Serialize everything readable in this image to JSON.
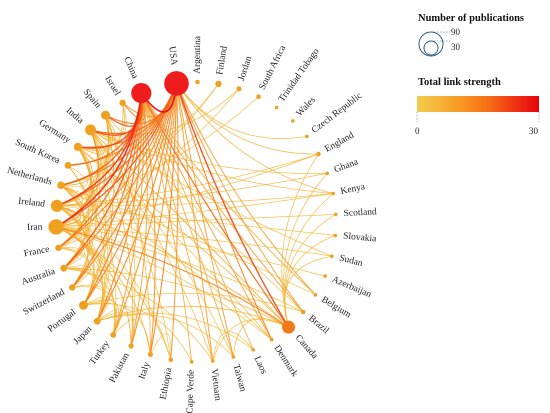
{
  "colors": {
    "gradient": [
      "#f2c94c",
      "#f5b236",
      "#f7901f",
      "#f56a16",
      "#ee3412",
      "#e8000e"
    ],
    "node_low": "#f0a020",
    "node_high": "#ee1c1c",
    "ring": "#2f5f86"
  },
  "legend": {
    "pubs_title": "Number of publications",
    "pubs_big": "90",
    "pubs_small": "30",
    "strength_title": "Total link strength",
    "strength_min": "0",
    "strength_max": "30"
  },
  "nodes": [
    {
      "label": "USA",
      "size": 90,
      "strength": 30
    },
    {
      "label": "Argentina",
      "size": 3,
      "strength": 2
    },
    {
      "label": "Finland",
      "size": 6,
      "strength": 3
    },
    {
      "label": "Jordan",
      "size": 4,
      "strength": 2
    },
    {
      "label": "South Africa",
      "size": 3,
      "strength": 2
    },
    {
      "label": "Trinidad Tobago",
      "size": 2,
      "strength": 1
    },
    {
      "label": "Wales",
      "size": 2,
      "strength": 1
    },
    {
      "label": "Czech Republic",
      "size": 2,
      "strength": 2
    },
    {
      "label": "England",
      "size": 3,
      "strength": 4
    },
    {
      "label": "Ghana",
      "size": 2,
      "strength": 2
    },
    {
      "label": "Kenya",
      "size": 2,
      "strength": 3
    },
    {
      "label": "Scotland",
      "size": 2,
      "strength": 2
    },
    {
      "label": "Slovakia",
      "size": 2,
      "strength": 2
    },
    {
      "label": "Sudan",
      "size": 2,
      "strength": 2
    },
    {
      "label": "Azerbaijan",
      "size": 2,
      "strength": 2
    },
    {
      "label": "Belgium",
      "size": 2,
      "strength": 3
    },
    {
      "label": "Brazil",
      "size": 3,
      "strength": 3
    },
    {
      "label": "Canada",
      "size": 25,
      "strength": 10
    },
    {
      "label": "Denmark",
      "size": 2,
      "strength": 3
    },
    {
      "label": "Laos",
      "size": 2,
      "strength": 2
    },
    {
      "label": "Taiwan",
      "size": 2,
      "strength": 3
    },
    {
      "label": "Vietnam",
      "size": 2,
      "strength": 3
    },
    {
      "label": "Cape Verde",
      "size": 2,
      "strength": 2
    },
    {
      "label": "Ethiopia",
      "size": 3,
      "strength": 3
    },
    {
      "label": "Italy",
      "size": 4,
      "strength": 4
    },
    {
      "label": "Pakistan",
      "size": 4,
      "strength": 4
    },
    {
      "label": "Turkey",
      "size": 5,
      "strength": 5
    },
    {
      "label": "Japan",
      "size": 7,
      "strength": 5
    },
    {
      "label": "Portugal",
      "size": 12,
      "strength": 6
    },
    {
      "label": "Switzerland",
      "size": 6,
      "strength": 6
    },
    {
      "label": "Australia",
      "size": 7,
      "strength": 6
    },
    {
      "label": "France",
      "size": 6,
      "strength": 6
    },
    {
      "label": "Iran",
      "size": 35,
      "strength": 7
    },
    {
      "label": "Ireland",
      "size": 22,
      "strength": 7
    },
    {
      "label": "Netherlands",
      "size": 8,
      "strength": 7
    },
    {
      "label": "South Korea",
      "size": 7,
      "strength": 6
    },
    {
      "label": "Germany",
      "size": 10,
      "strength": 7
    },
    {
      "label": "India",
      "size": 18,
      "strength": 7
    },
    {
      "label": "Spain",
      "size": 12,
      "strength": 7
    },
    {
      "label": "Israel",
      "size": 6,
      "strength": 7
    },
    {
      "label": "China",
      "size": 60,
      "strength": 28
    }
  ],
  "links": [
    [
      "USA",
      "China",
      30
    ],
    [
      "USA",
      "Canada",
      22
    ],
    [
      "USA",
      "Iran",
      20
    ],
    [
      "USA",
      "Ireland",
      18
    ],
    [
      "USA",
      "India",
      18
    ],
    [
      "USA",
      "Spain",
      16
    ],
    [
      "USA",
      "Germany",
      16
    ],
    [
      "USA",
      "Netherlands",
      16
    ],
    [
      "USA",
      "South Korea",
      14
    ],
    [
      "USA",
      "France",
      14
    ],
    [
      "USA",
      "Australia",
      14
    ],
    [
      "USA",
      "Switzerland",
      14
    ],
    [
      "USA",
      "Portugal",
      14
    ],
    [
      "USA",
      "Japan",
      14
    ],
    [
      "USA",
      "Turkey",
      12
    ],
    [
      "USA",
      "Pakistan",
      12
    ],
    [
      "USA",
      "Italy",
      14
    ],
    [
      "USA",
      "Ethiopia",
      12
    ],
    [
      "USA",
      "Denmark",
      14
    ],
    [
      "USA",
      "Taiwan",
      10
    ],
    [
      "USA",
      "Vietnam",
      10
    ],
    [
      "USA",
      "Brazil",
      10
    ],
    [
      "USA",
      "Belgium",
      10
    ],
    [
      "USA",
      "Israel",
      12
    ],
    [
      "USA",
      "England",
      6
    ],
    [
      "USA",
      "Kenya",
      6
    ],
    [
      "USA",
      "Czech Republic",
      5
    ],
    [
      "China",
      "Iran",
      26
    ],
    [
      "China",
      "Ireland",
      24
    ],
    [
      "China",
      "Germany",
      22
    ],
    [
      "China",
      "Spain",
      20
    ],
    [
      "China",
      "India",
      22
    ],
    [
      "China",
      "Netherlands",
      20
    ],
    [
      "China",
      "Australia",
      20
    ],
    [
      "China",
      "South Korea",
      18
    ],
    [
      "China",
      "Canada",
      18
    ],
    [
      "China",
      "France",
      18
    ],
    [
      "China",
      "Portugal",
      16
    ],
    [
      "China",
      "Switzerland",
      16
    ],
    [
      "China",
      "Japan",
      14
    ],
    [
      "China",
      "Italy",
      12
    ],
    [
      "China",
      "Turkey",
      10
    ],
    [
      "China",
      "Pakistan",
      10
    ],
    [
      "China",
      "Laos",
      8
    ],
    [
      "China",
      "Cape Verde",
      8
    ],
    [
      "China",
      "Israel",
      14
    ],
    [
      "China",
      "Taiwan",
      8
    ],
    [
      "China",
      "Vietnam",
      8
    ],
    [
      "China",
      "Denmark",
      10
    ],
    [
      "China",
      "Belgium",
      8
    ],
    [
      "China",
      "Brazil",
      10
    ],
    [
      "Canada",
      "Iran",
      14
    ],
    [
      "Canada",
      "India",
      8
    ],
    [
      "Canada",
      "Ireland",
      8
    ],
    [
      "Canada",
      "Australia",
      6
    ],
    [
      "Canada",
      "Kenya",
      4
    ],
    [
      "Canada",
      "Ghana",
      4
    ],
    [
      "Canada",
      "Sudan",
      4
    ],
    [
      "Canada",
      "Scotland",
      4
    ],
    [
      "Canada",
      "Slovakia",
      4
    ],
    [
      "Canada",
      "Japan",
      6
    ],
    [
      "Canada",
      "Germany",
      6
    ],
    [
      "Canada",
      "Vietnam",
      4
    ],
    [
      "Canada",
      "Taiwan",
      4
    ],
    [
      "Canada",
      "England",
      4
    ],
    [
      "Iran",
      "India",
      12
    ],
    [
      "Iran",
      "Ireland",
      10
    ],
    [
      "Iran",
      "Spain",
      8
    ],
    [
      "Iran",
      "Germany",
      8
    ],
    [
      "Iran",
      "Netherlands",
      8
    ],
    [
      "Iran",
      "Italy",
      6
    ],
    [
      "Iran",
      "Portugal",
      6
    ],
    [
      "Iran",
      "Japan",
      6
    ],
    [
      "Iran",
      "Turkey",
      6
    ],
    [
      "Iran",
      "Pakistan",
      8
    ],
    [
      "Iran",
      "Australia",
      8
    ],
    [
      "Iran",
      "France",
      6
    ],
    [
      "Iran",
      "Switzerland",
      6
    ],
    [
      "Iran",
      "Kenya",
      4
    ],
    [
      "Iran",
      "Ethiopia",
      4
    ],
    [
      "Ireland",
      "Spain",
      8
    ],
    [
      "Ireland",
      "Netherlands",
      8
    ],
    [
      "Ireland",
      "Germany",
      8
    ],
    [
      "Ireland",
      "India",
      6
    ],
    [
      "Ireland",
      "Portugal",
      6
    ],
    [
      "Ireland",
      "France",
      6
    ],
    [
      "Ireland",
      "Australia",
      6
    ],
    [
      "Ireland",
      "Switzerland",
      6
    ],
    [
      "Ireland",
      "Japan",
      4
    ],
    [
      "Ireland",
      "Ghana",
      4
    ],
    [
      "India",
      "Spain",
      6
    ],
    [
      "India",
      "Germany",
      6
    ],
    [
      "India",
      "Australia",
      6
    ],
    [
      "India",
      "France",
      6
    ],
    [
      "India",
      "Japan",
      4
    ],
    [
      "India",
      "Pakistan",
      6
    ],
    [
      "India",
      "Ethiopia",
      4
    ],
    [
      "India",
      "Kenya",
      4
    ],
    [
      "India",
      "Portugal",
      6
    ],
    [
      "India",
      "Sudan",
      4
    ],
    [
      "Spain",
      "Portugal",
      8
    ],
    [
      "Spain",
      "France",
      6
    ],
    [
      "Spain",
      "Germany",
      6
    ],
    [
      "Spain",
      "Netherlands",
      6
    ],
    [
      "Spain",
      "Italy",
      6
    ],
    [
      "Germany",
      "Netherlands",
      8
    ],
    [
      "Germany",
      "France",
      6
    ],
    [
      "Germany",
      "Switzerland",
      6
    ],
    [
      "Germany",
      "Australia",
      6
    ],
    [
      "Germany",
      "Japan",
      4
    ],
    [
      "Netherlands",
      "Switzerland",
      6
    ],
    [
      "Netherlands",
      "Australia",
      6
    ],
    [
      "Netherlands",
      "France",
      6
    ],
    [
      "Netherlands",
      "South Korea",
      4
    ],
    [
      "South Korea",
      "Japan",
      6
    ],
    [
      "South Korea",
      "Australia",
      4
    ],
    [
      "South Korea",
      "Turkey",
      4
    ],
    [
      "France",
      "Switzerland",
      6
    ],
    [
      "France",
      "Portugal",
      4
    ],
    [
      "France",
      "Australia",
      4
    ],
    [
      "Australia",
      "Japan",
      6
    ],
    [
      "Australia",
      "Switzerland",
      4
    ],
    [
      "Australia",
      "Portugal",
      4
    ],
    [
      "Australia",
      "Turkey",
      4
    ],
    [
      "Portugal",
      "Italy",
      4
    ],
    [
      "Portugal",
      "Turkey",
      4
    ],
    [
      "Portugal",
      "Japan",
      4
    ],
    [
      "Portugal",
      "Brazil",
      4
    ],
    [
      "Switzerland",
      "Japan",
      4
    ],
    [
      "Switzerland",
      "Turkey",
      4
    ],
    [
      "Japan",
      "Turkey",
      4
    ],
    [
      "Japan",
      "Pakistan",
      4
    ],
    [
      "Turkey",
      "Pakistan",
      4
    ],
    [
      "Italy",
      "Ethiopia",
      4
    ],
    [
      "Israel",
      "Germany",
      6
    ],
    [
      "Israel",
      "Netherlands",
      4
    ],
    [
      "Israel",
      "India",
      4
    ],
    [
      "Finland",
      "Ireland",
      4
    ],
    [
      "Finland",
      "Netherlands",
      4
    ],
    [
      "Jordan",
      "Iran",
      4
    ],
    [
      "Jordan",
      "India",
      4
    ],
    [
      "South Africa",
      "Ireland",
      3
    ],
    [
      "England",
      "Iran",
      4
    ],
    [
      "England",
      "Ireland",
      4
    ],
    [
      "Ghana",
      "India",
      4
    ],
    [
      "Kenya",
      "Ireland",
      4
    ],
    [
      "Scotland",
      "Iran",
      4
    ],
    [
      "Slovakia",
      "Ireland",
      3
    ],
    [
      "Sudan",
      "Iran",
      4
    ],
    [
      "Azerbaijan",
      "Iran",
      4
    ],
    [
      "Belgium",
      "Netherlands",
      4
    ],
    [
      "Brazil",
      "Iran",
      4
    ],
    [
      "Brazil",
      "Spain",
      4
    ],
    [
      "Denmark",
      "Germany",
      4
    ],
    [
      "Denmark",
      "Netherlands",
      4
    ],
    [
      "Denmark",
      "Iran",
      4
    ],
    [
      "Laos",
      "Vietnam",
      4
    ],
    [
      "Laos",
      "Japan",
      4
    ],
    [
      "Taiwan",
      "India",
      4
    ],
    [
      "Taiwan",
      "Japan",
      4
    ],
    [
      "Vietnam",
      "India",
      4
    ],
    [
      "Vietnam",
      "Australia",
      4
    ],
    [
      "Cape Verde",
      "Portugal",
      4
    ],
    [
      "Ethiopia",
      "Ireland",
      4
    ],
    [
      "Ethiopia",
      "Iran",
      4
    ],
    [
      "Pakistan",
      "Spain",
      4
    ]
  ]
}
